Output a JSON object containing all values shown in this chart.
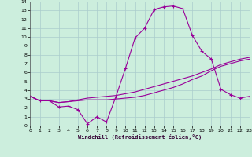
{
  "xlabel": "Windchill (Refroidissement éolien,°C)",
  "bg_color": "#cceedd",
  "grid_color": "#aacccc",
  "line_color": "#990099",
  "x_values": [
    0,
    1,
    2,
    3,
    4,
    5,
    6,
    7,
    8,
    9,
    10,
    11,
    12,
    13,
    14,
    15,
    16,
    17,
    18,
    19,
    20,
    21,
    22,
    23
  ],
  "line1_y": [
    3.3,
    2.8,
    2.8,
    2.1,
    2.2,
    1.8,
    0.2,
    1.0,
    0.4,
    3.3,
    6.5,
    9.9,
    11.0,
    13.1,
    13.4,
    13.5,
    13.2,
    10.2,
    8.4,
    7.5,
    4.1,
    3.5,
    3.1,
    3.3
  ],
  "line2_y": [
    3.3,
    2.8,
    2.8,
    2.6,
    2.7,
    2.8,
    2.9,
    2.9,
    2.9,
    3.0,
    3.1,
    3.2,
    3.4,
    3.7,
    4.0,
    4.3,
    4.7,
    5.2,
    5.6,
    6.2,
    6.7,
    7.0,
    7.3,
    7.5
  ],
  "line3_y": [
    3.3,
    2.8,
    2.8,
    2.6,
    2.7,
    2.9,
    3.1,
    3.2,
    3.3,
    3.4,
    3.6,
    3.8,
    4.1,
    4.4,
    4.7,
    5.0,
    5.3,
    5.6,
    6.0,
    6.4,
    6.9,
    7.2,
    7.5,
    7.7
  ],
  "ylim": [
    0,
    14
  ],
  "xlim": [
    0,
    23
  ],
  "yticks": [
    0,
    1,
    2,
    3,
    4,
    5,
    6,
    7,
    8,
    9,
    10,
    11,
    12,
    13,
    14
  ],
  "xticks": [
    0,
    1,
    2,
    3,
    4,
    5,
    6,
    7,
    8,
    9,
    10,
    11,
    12,
    13,
    14,
    15,
    16,
    17,
    18,
    19,
    20,
    21,
    22,
    23
  ]
}
